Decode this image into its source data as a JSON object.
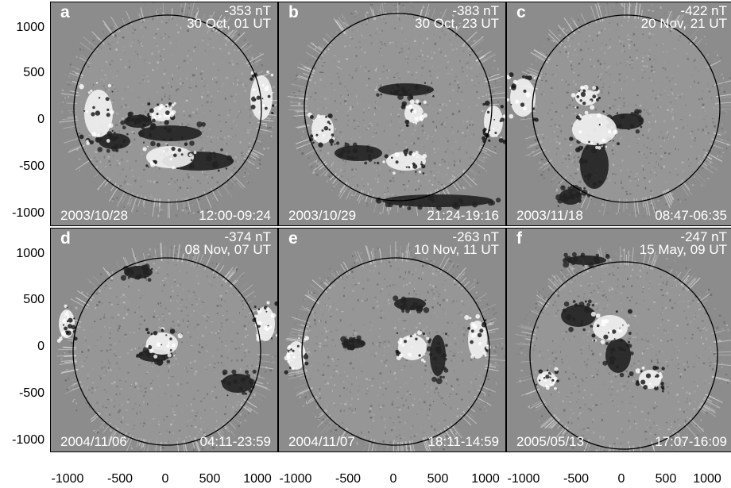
{
  "panels": [
    {
      "letter": "a",
      "dst": "-353 nT",
      "dst_time": "30 Oct, 01 UT",
      "date": "2003/10/28",
      "time_range": "12:00-09:24"
    },
    {
      "letter": "b",
      "dst": "-383 nT",
      "dst_time": "30 Oct, 23 UT",
      "date": "2003/10/29",
      "time_range": "21:24-19:16"
    },
    {
      "letter": "c",
      "dst": "-422 nT",
      "dst_time": "20 Nov, 21 UT",
      "date": "2003/11/18",
      "time_range": "08:47-06:35"
    },
    {
      "letter": "d",
      "dst": "-374 nT",
      "dst_time": "08 Nov, 07 UT",
      "date": "2004/11/06",
      "time_range": "04:11-23:59"
    },
    {
      "letter": "e",
      "dst": "-263 nT",
      "dst_time": "10 Nov, 11 UT",
      "date": "2004/11/07",
      "time_range": "18:11-14:59"
    },
    {
      "letter": "f",
      "dst": "-247 nT",
      "dst_time": "15 May, 09 UT",
      "date": "2005/05/13",
      "time_range": "17:07-16:09"
    }
  ],
  "axes": {
    "y_ticks": [
      "1000",
      "500",
      "0",
      "-500",
      "-1000"
    ],
    "x_ticks": [
      "-1000",
      "-500",
      "0",
      "500",
      "1000"
    ]
  },
  "colors": {
    "background": "#8c8c8c",
    "limb_circle": "#000000",
    "label_text": "#ffffff"
  }
}
